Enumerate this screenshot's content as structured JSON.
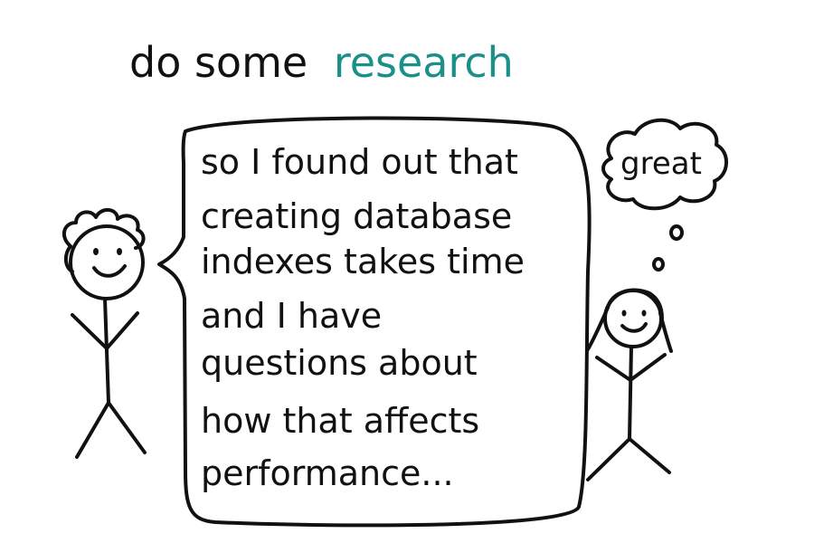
{
  "title": {
    "prefix": "do some",
    "highlight": "research",
    "highlight_color": "#1a9089"
  },
  "speech_bubble": {
    "lines": [
      "so I found out that",
      "creating database",
      "indexes takes time",
      "and I have",
      "questions about",
      "how that affects",
      "performance..."
    ]
  },
  "thought_bubble": {
    "text": "great"
  },
  "characters": [
    {
      "role": "speaker",
      "hair": "curly",
      "expression": "smile"
    },
    {
      "role": "listener",
      "hair": "long",
      "expression": "smile"
    }
  ],
  "colors": {
    "ink": "#111111",
    "accent": "#1a9089",
    "background": "#ffffff"
  }
}
